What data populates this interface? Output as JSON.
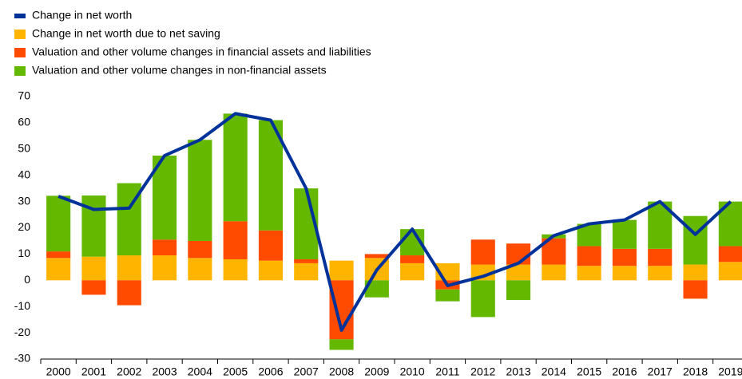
{
  "chart_data": {
    "type": "bar",
    "stacked": true,
    "categories": [
      "2000",
      "2001",
      "2002",
      "2003",
      "2004",
      "2005",
      "2006",
      "2007",
      "2008",
      "2009",
      "2010",
      "2011",
      "2012",
      "2013",
      "2014",
      "2015",
      "2016",
      "2017",
      "2018",
      "2019"
    ],
    "series": [
      {
        "name": "Change in net worth",
        "type": "line",
        "color": "#003299",
        "values": [
          32,
          27,
          27.5,
          47.5,
          53.5,
          63.5,
          61,
          35,
          -19,
          4,
          19.5,
          -2,
          1.5,
          6.5,
          17,
          21.5,
          23,
          30,
          17.5,
          30
        ]
      },
      {
        "name": "Change in net worth due to net saving",
        "color": "#ffb400",
        "values": [
          8.5,
          9,
          9.5,
          9.5,
          8.5,
          8,
          7.5,
          6.5,
          7.5,
          8.5,
          6.5,
          6.5,
          6,
          6,
          6,
          5.5,
          5.5,
          5.5,
          6,
          7
        ]
      },
      {
        "name": "Valuation and other volume changes in financial assets and liabilities",
        "color": "#ff4b00",
        "values": [
          2.5,
          -5.5,
          -9.5,
          6,
          6.5,
          14.5,
          11.5,
          1.5,
          -22.5,
          1.5,
          3,
          -3.5,
          9.5,
          8,
          10,
          7.5,
          6.5,
          6.5,
          -7,
          6
        ]
      },
      {
        "name": "Valuation and other volume changes in non-financial assets",
        "color": "#65b800",
        "values": [
          21.2,
          23.3,
          27.5,
          32,
          38.5,
          41,
          42,
          27,
          -4,
          -6.5,
          10,
          -4.5,
          -14,
          -7.5,
          1.5,
          8.5,
          11,
          18,
          18.5,
          17
        ]
      }
    ],
    "ylim": [
      -30,
      70
    ],
    "yticks": [
      -30,
      -20,
      -10,
      0,
      10,
      20,
      30,
      40,
      50,
      60,
      70
    ],
    "grid": false
  }
}
